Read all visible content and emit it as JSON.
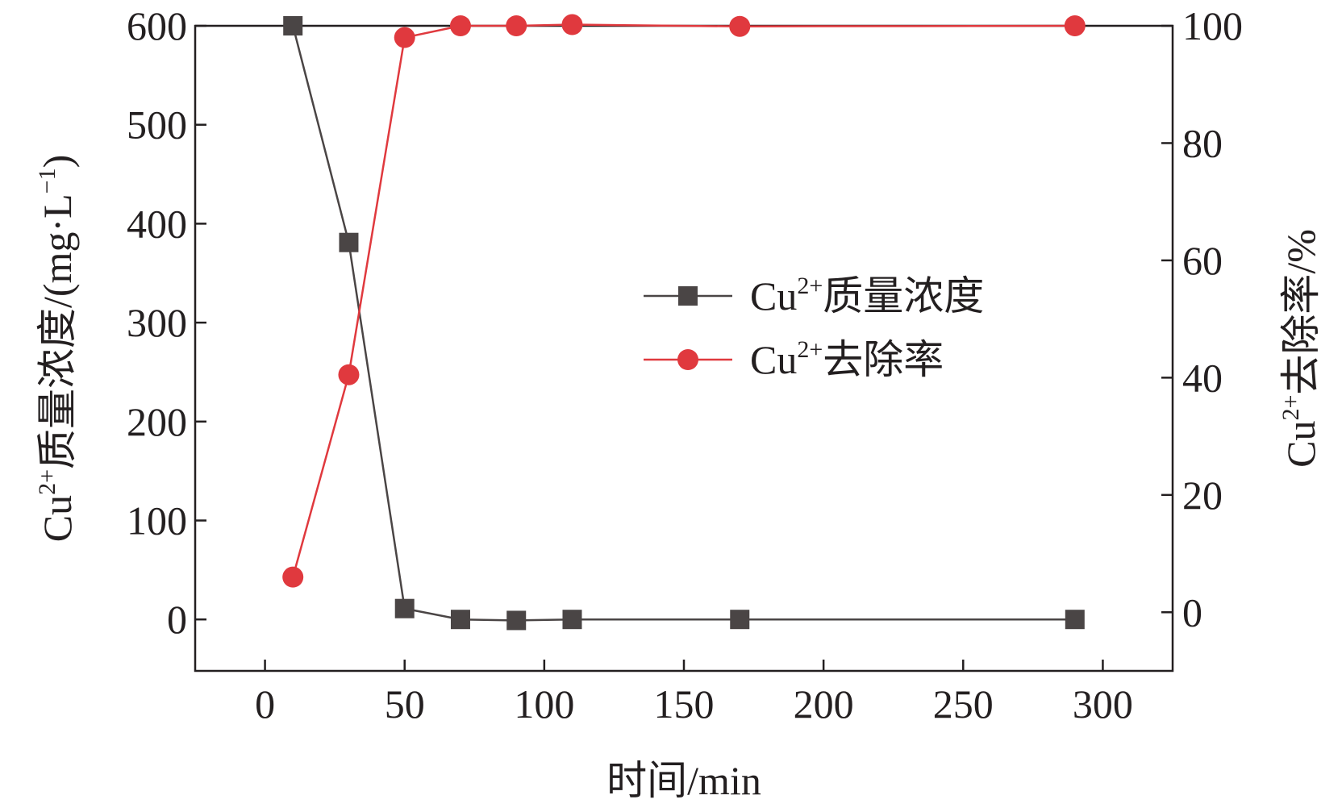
{
  "chart_data": {
    "type": "line",
    "x": [
      10,
      30,
      50,
      70,
      90,
      110,
      170,
      290
    ],
    "xlim": [
      -25,
      325
    ],
    "xticks": [
      0,
      50,
      100,
      150,
      200,
      250,
      300
    ],
    "xlabel": "时间/min",
    "left_axis": {
      "label_prefix": "Cu",
      "label_sup": "2+",
      "label_main": "质量浓度/(mg·L",
      "label_sup2": "−1",
      "label_end": ")",
      "ylim": [
        -52,
        600
      ],
      "ticks": [
        0,
        100,
        200,
        300,
        400,
        500,
        600
      ]
    },
    "right_axis": {
      "label_prefix": "Cu",
      "label_sup": "2+",
      "label_main": "去除率/%",
      "ylim": [
        -10,
        100
      ],
      "ticks": [
        0,
        20,
        40,
        60,
        80,
        100
      ]
    },
    "series": [
      {
        "name_prefix": "Cu",
        "name_sup": "2+",
        "name_main": "质量浓度",
        "axis": "left",
        "marker": "square",
        "color": "#4a4545",
        "values": [
          600,
          381,
          11,
          0,
          -1,
          0,
          0,
          0
        ]
      },
      {
        "name_prefix": "Cu",
        "name_sup": "2+",
        "name_main": "去除率",
        "axis": "right",
        "marker": "circle",
        "color": "#e0393e",
        "values": [
          6,
          40.5,
          98,
          100,
          100,
          100.2,
          99.9,
          100
        ]
      }
    ],
    "legend_position": "center-right",
    "grid": false
  }
}
